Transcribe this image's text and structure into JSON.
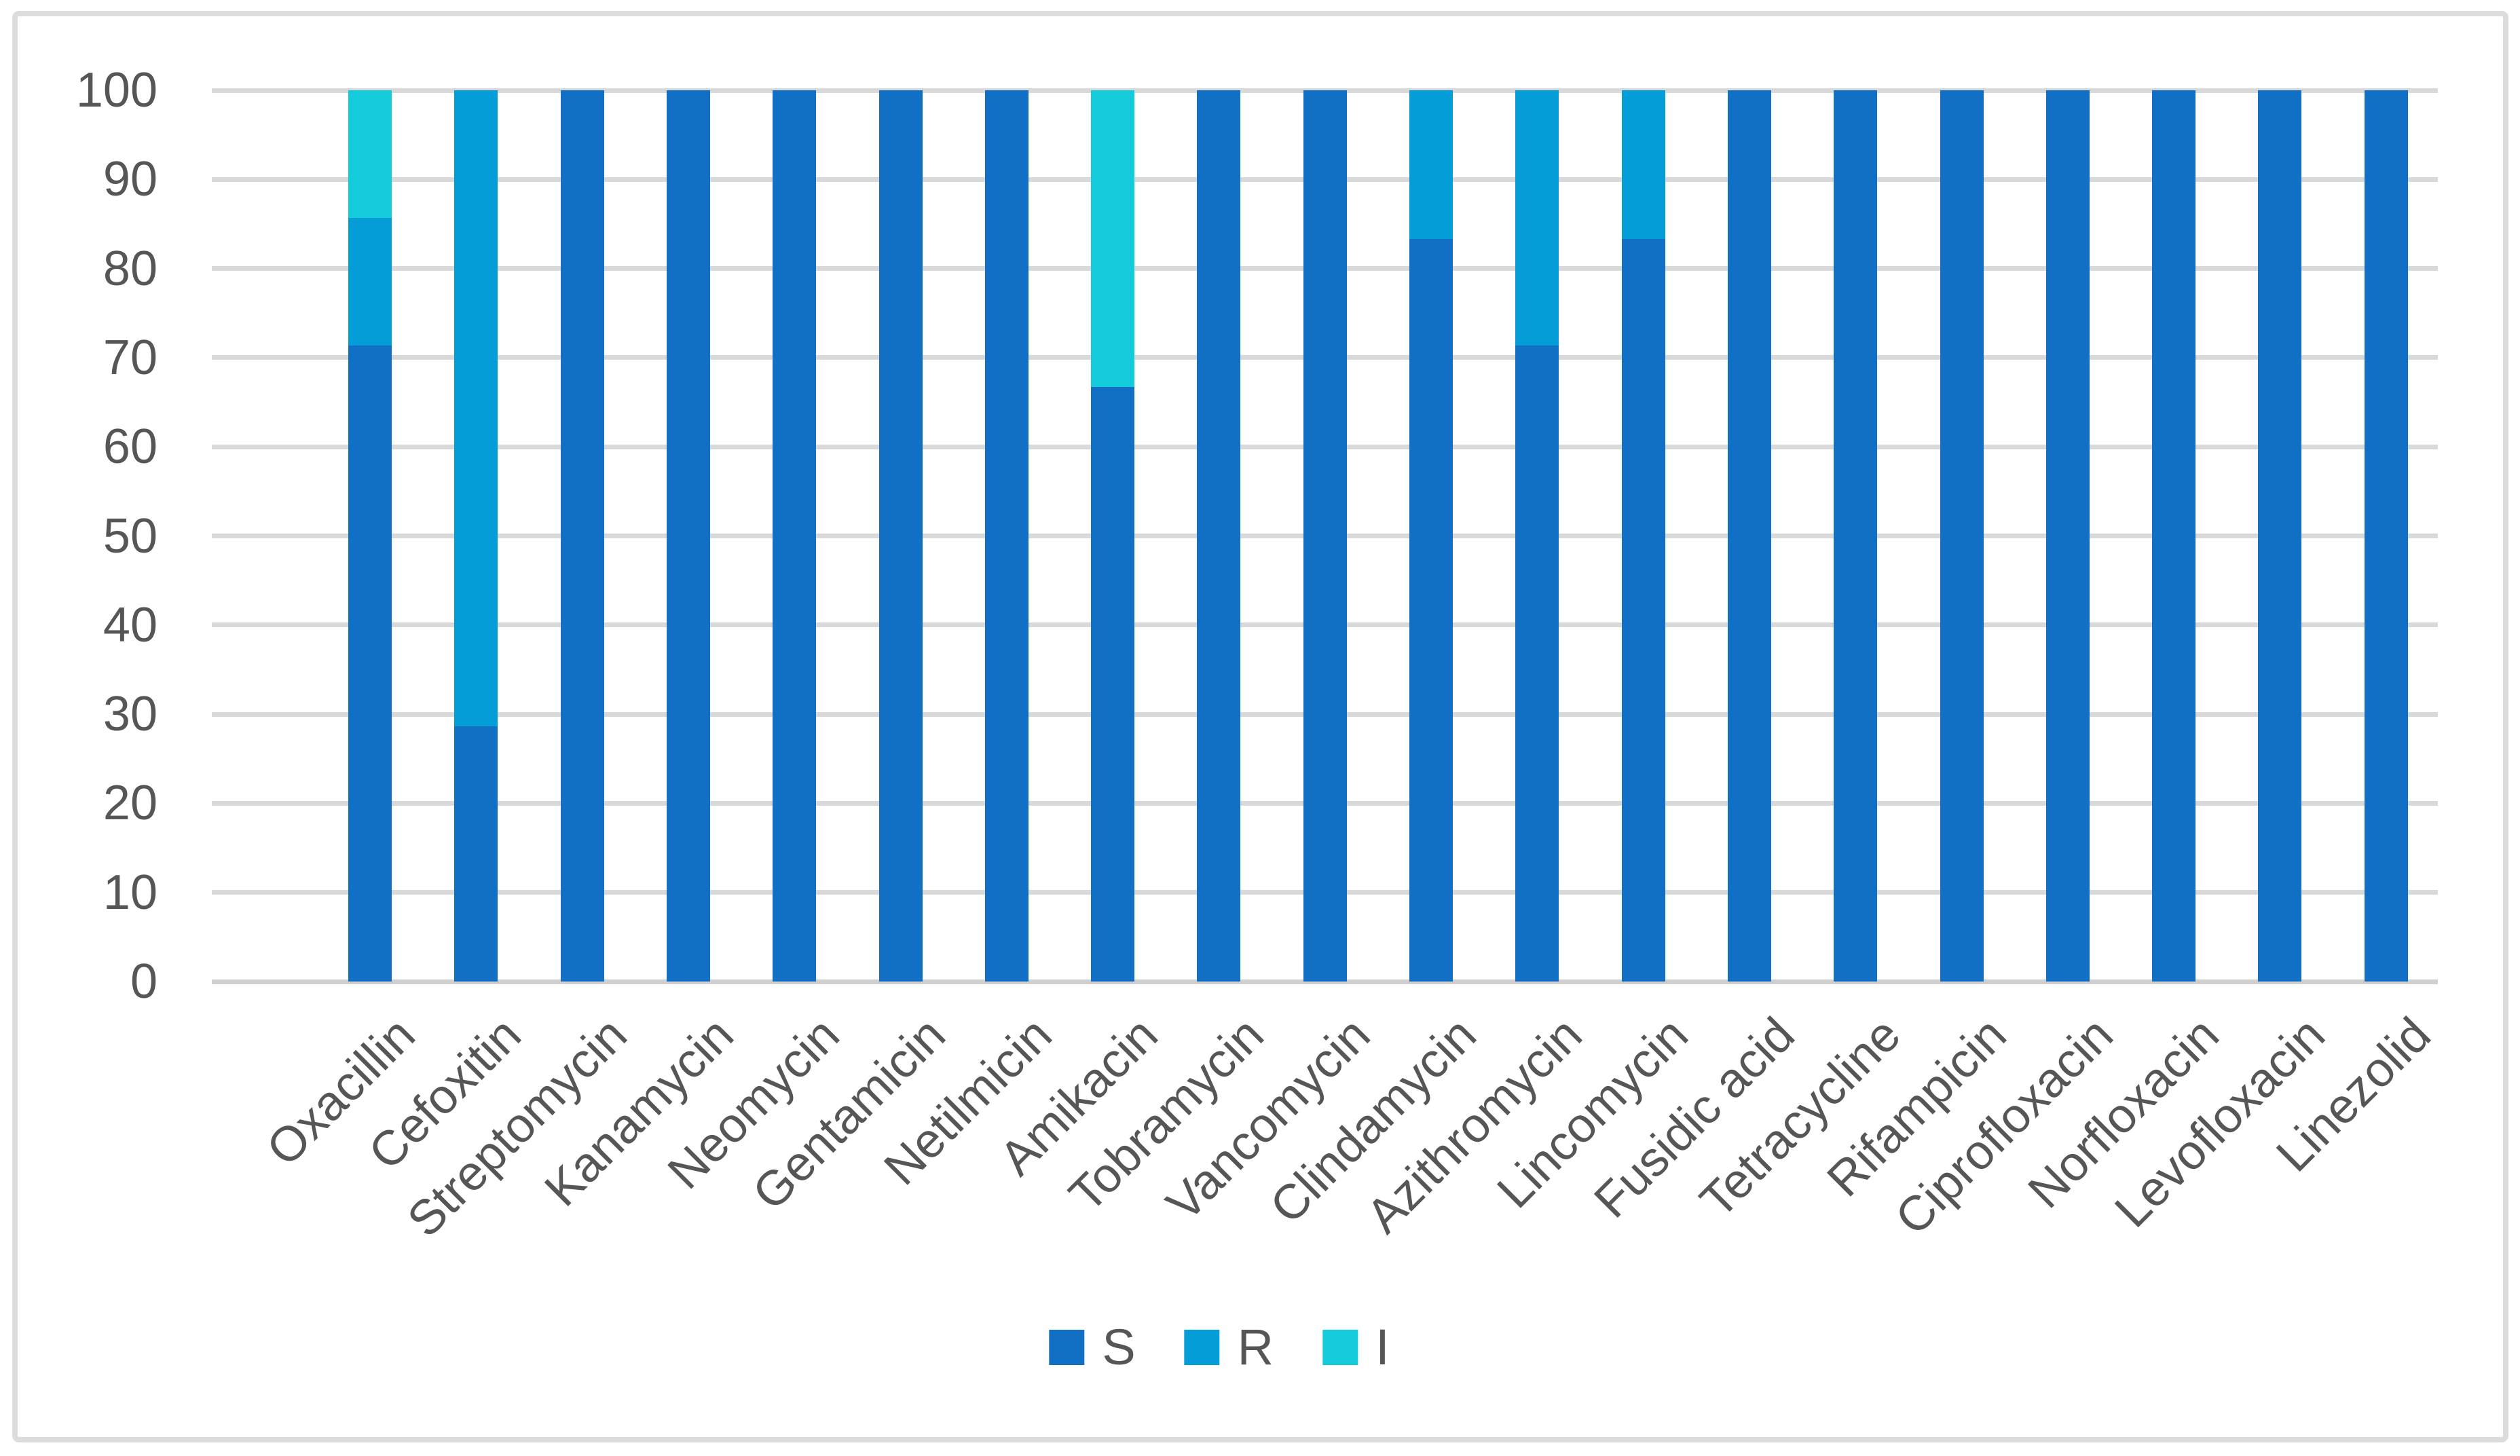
{
  "chart_data": {
    "type": "bar",
    "stacked": true,
    "title": "",
    "xlabel": "",
    "ylabel": "",
    "ylim": [
      0,
      100
    ],
    "ytick_interval": 10,
    "yticks": [
      0,
      10,
      20,
      30,
      40,
      50,
      60,
      70,
      80,
      90,
      100
    ],
    "grid": true,
    "legend_position": "bottom-center",
    "categories": [
      "Oxacillin",
      "Cefoxitin",
      "Streptomycin",
      "Kanamycin",
      "Neomycin",
      "Gentamicin",
      "Netilmicin",
      "Amikacin",
      "Tobramycin",
      "Vancomycin",
      "Clindamycin",
      "Azithromycin",
      "Lincomycin",
      "Fusidic acid",
      "Tetracycline",
      "Rifampicin",
      "Ciprofloxacin",
      "Norfloxacin",
      "Levofloxacin",
      "Linezolid"
    ],
    "series": [
      {
        "name": "S",
        "color": "#1270C4",
        "values": [
          71.4,
          28.6,
          100,
          100,
          100,
          100,
          100,
          66.7,
          100,
          100,
          83.3,
          71.4,
          83.3,
          100,
          100,
          100,
          100,
          100,
          100,
          100
        ]
      },
      {
        "name": "R",
        "color": "#059DD8",
        "values": [
          14.3,
          71.4,
          0,
          0,
          0,
          0,
          0,
          0,
          0,
          0,
          16.7,
          28.6,
          16.7,
          0,
          0,
          0,
          0,
          0,
          0,
          0
        ]
      },
      {
        "name": "I",
        "color": "#14CBDC",
        "values": [
          14.3,
          0,
          0,
          0,
          0,
          0,
          0,
          33.3,
          0,
          0,
          0,
          0,
          0,
          0,
          0,
          0,
          0,
          0,
          0,
          0
        ]
      }
    ]
  },
  "style": {
    "background": "#FFFFFF",
    "frame_border_color": "#DCDCDC",
    "gridline_color": "#D9D9D9",
    "axis_line_color": "#CFCFCF",
    "tick_label_color": "#565656"
  }
}
